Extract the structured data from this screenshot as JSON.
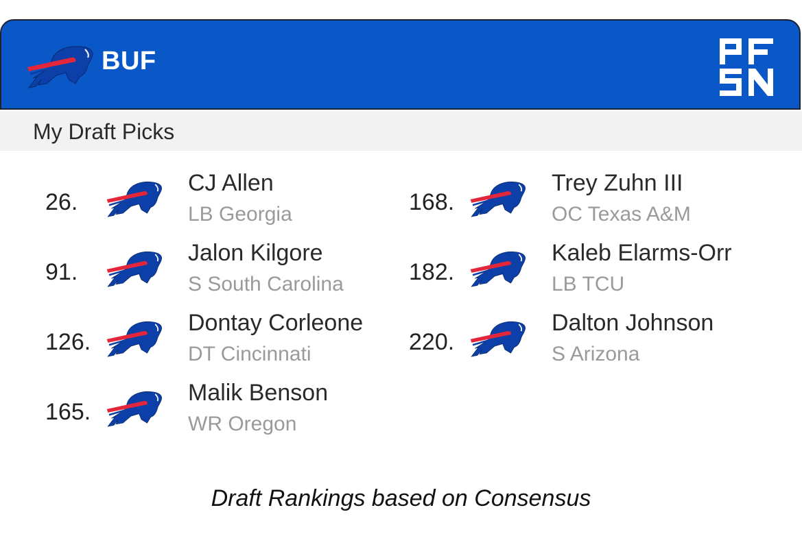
{
  "header": {
    "team_abbr": "BUF",
    "team_logo_icon": "bills-buffalo-icon",
    "brand_logo_icon": "pfsn-logo",
    "accent_color": "#0a58c8"
  },
  "section": {
    "title": "My Draft Picks"
  },
  "picks_left": [
    {
      "number": "26.",
      "name": "CJ Allen",
      "detail": "LB Georgia"
    },
    {
      "number": "91.",
      "name": "Jalon Kilgore",
      "detail": "S South Carolina"
    },
    {
      "number": "126.",
      "name": "Dontay Corleone",
      "detail": "DT Cincinnati"
    },
    {
      "number": "165.",
      "name": "Malik Benson",
      "detail": "WR Oregon"
    }
  ],
  "picks_right": [
    {
      "number": "168.",
      "name": "Trey Zuhn III",
      "detail": "OC Texas A&M"
    },
    {
      "number": "182.",
      "name": "Kaleb Elarms-Orr",
      "detail": "LB TCU"
    },
    {
      "number": "220.",
      "name": "Dalton Johnson",
      "detail": "S Arizona"
    }
  ],
  "footer": {
    "note": "Draft Rankings based on Consensus"
  }
}
